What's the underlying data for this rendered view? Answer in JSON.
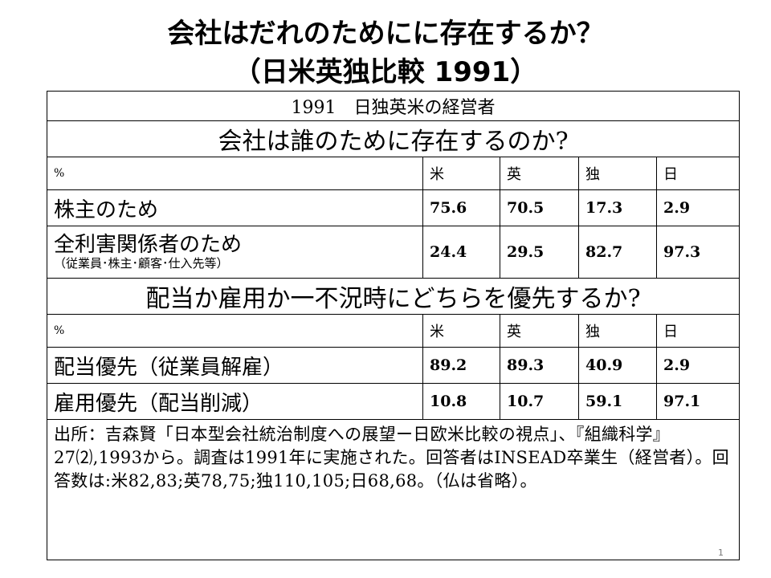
{
  "title_line1": "会社はだれのためにに存在するか？",
  "title_line2": "（日米英独比較  1991）",
  "table": {
    "header": "1991　日独英米の経営者",
    "q1": "会社は誰のために存在するのか?",
    "q2": "配当か雇用か一不況時にどちらを優先するか?",
    "pct": "%",
    "countries": [
      "米",
      "英",
      "独",
      "日"
    ],
    "rows1": [
      {
        "label": "株主のため",
        "sub": "",
        "values": [
          "75.6",
          "70.5",
          "17.3",
          "2.9"
        ]
      },
      {
        "label": "全利害関係者のため",
        "sub": "（従業員･株主･顧客･仕入先等）",
        "values": [
          "24.4",
          "29.5",
          "82.7",
          "97.3"
        ]
      }
    ],
    "rows2": [
      {
        "label": "配当優先（従業員解雇）",
        "values": [
          "89.2",
          "89.3",
          "40.9",
          "2.9"
        ]
      },
      {
        "label": "雇用優先（配当削減）",
        "values": [
          "10.8",
          "10.7",
          "59.1",
          "97.1"
        ]
      }
    ],
    "source": "出所：吉森賢「日本型会社統治制度への展望ー日欧米比較の視点」、『組織科学』27⑵,1993から。調査は1991年に実施された。回答者はINSEAD卒業生（経営者）。回答数は:米82,83;英78,75;独110,105;日68,68。（仏は省略）。"
  },
  "page_number": "1"
}
